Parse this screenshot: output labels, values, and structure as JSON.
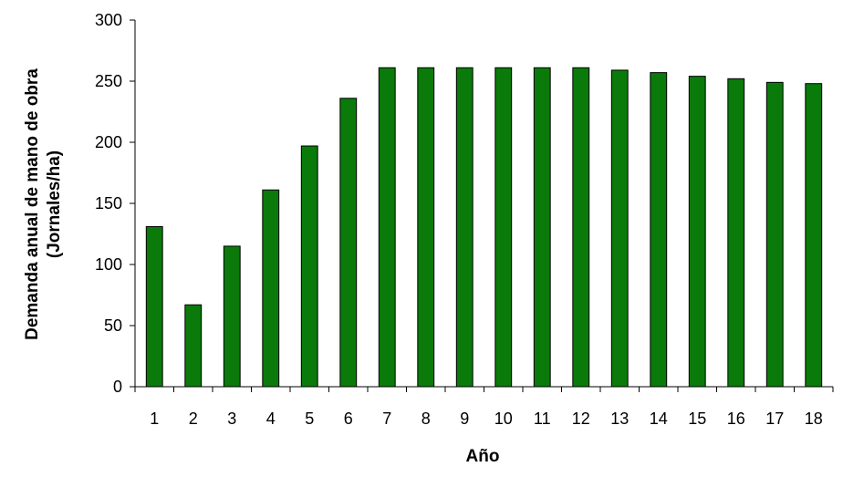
{
  "chart_data": {
    "type": "bar",
    "title": "",
    "xlabel": "Año",
    "ylabel_line1": "Demanda anual de mano de obra",
    "ylabel_line2": "(Jornales/ha)",
    "categories": [
      "1",
      "2",
      "3",
      "4",
      "5",
      "6",
      "7",
      "8",
      "9",
      "10",
      "11",
      "12",
      "13",
      "14",
      "15",
      "16",
      "17",
      "18"
    ],
    "values": [
      131,
      67,
      115,
      161,
      197,
      236,
      261,
      261,
      261,
      261,
      261,
      261,
      259,
      257,
      254,
      252,
      249,
      248
    ],
    "ylim": [
      0,
      300
    ],
    "yticks": [
      0,
      50,
      100,
      150,
      200,
      250,
      300
    ],
    "grid": false,
    "legend": "none",
    "bar_color": "#0a7a0a",
    "bar_edge_color": "#000000"
  }
}
